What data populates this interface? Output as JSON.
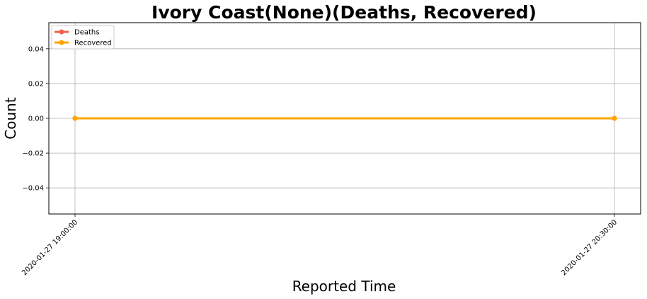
{
  "chart_data": {
    "type": "line",
    "title": "Ivory Coast(None)(Deaths, Recovered)",
    "xlabel": "Reported Time",
    "ylabel": "Count",
    "x": [
      "2020-01-27 19:00:00",
      "2020-01-27 20:30:00"
    ],
    "series": [
      {
        "name": "Deaths",
        "values": [
          0,
          0
        ],
        "color": "#f0614a"
      },
      {
        "name": "Recovered",
        "values": [
          0,
          0
        ],
        "color": "#ffa500"
      }
    ],
    "ylim": [
      -0.055,
      0.055
    ],
    "yticks": [
      -0.04,
      -0.02,
      0.0,
      0.02,
      0.04
    ],
    "ytick_labels": [
      "−0.04",
      "−0.02",
      "0.00",
      "0.02",
      "0.04"
    ],
    "grid": true,
    "legend_position": "top-left"
  }
}
